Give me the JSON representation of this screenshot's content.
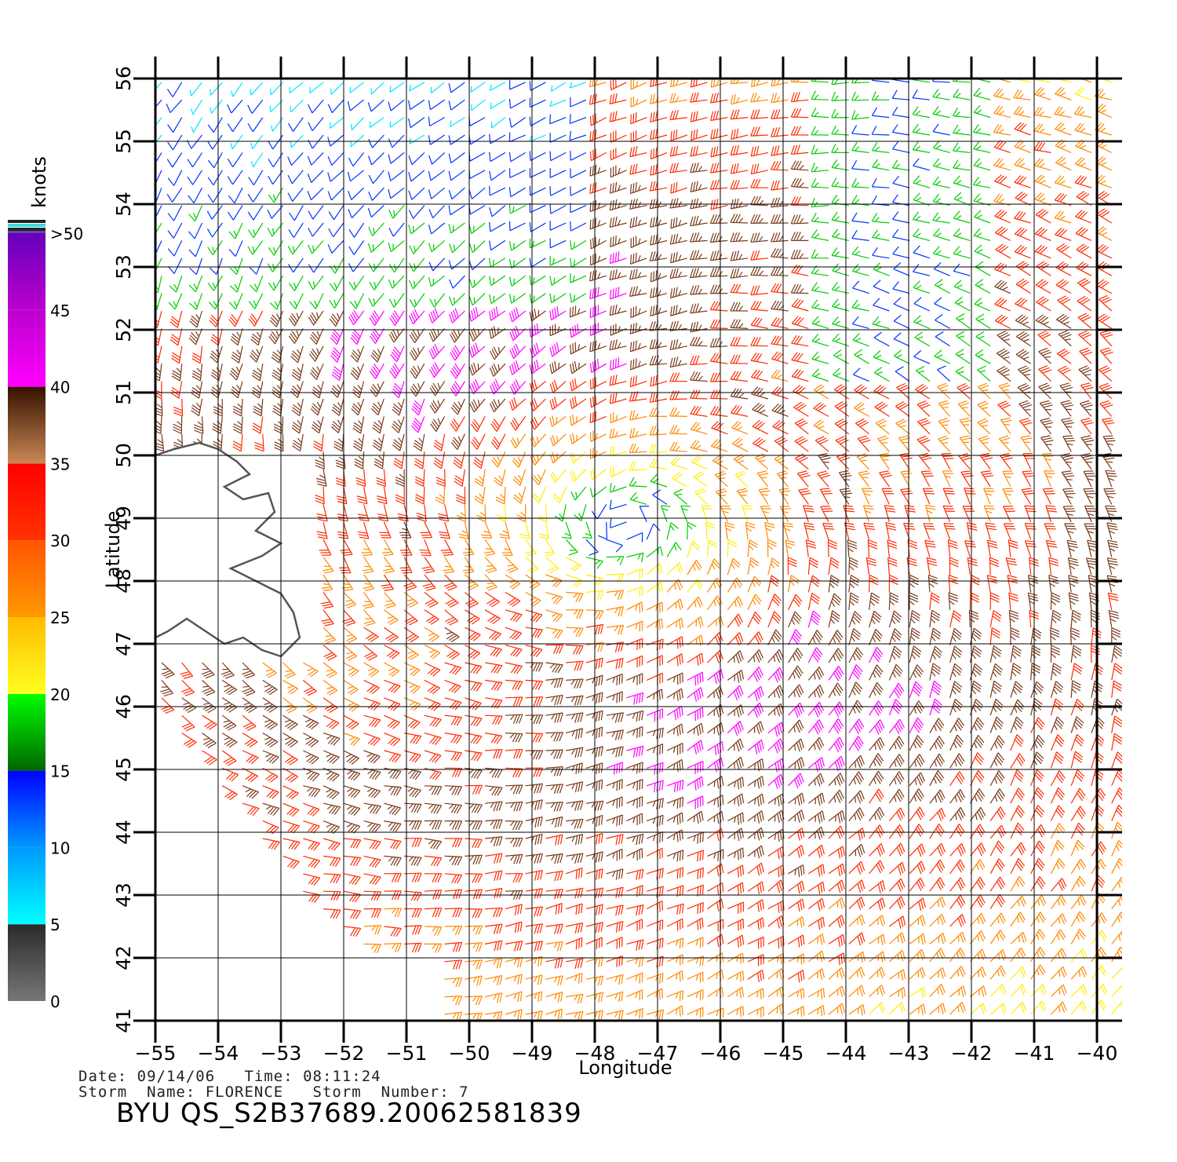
{
  "legend": {
    "title": "knots",
    "levels": [
      {
        "label": "0",
        "value": 0
      },
      {
        "label": "5",
        "value": 5
      },
      {
        "label": "10",
        "value": 10
      },
      {
        "label": "15",
        "value": 15
      },
      {
        "label": "20",
        "value": 20
      },
      {
        "label": "25",
        "value": 25
      },
      {
        "label": "30",
        "value": 30
      },
      {
        "label": "35",
        "value": 35
      },
      {
        "label": "40",
        "value": 40
      },
      {
        "label": "45",
        "value": 45
      },
      {
        "label": ">50",
        "value": 50
      }
    ],
    "colors": {
      "0-5": "#7a7a7a",
      "5-10": "#00e5ff",
      "10-15": "#0033ff",
      "15-20": "#00cc00",
      "20-25": "#ffee00",
      "25-30": "#ff8800",
      "30-35": "#ff2a00",
      "35-40": "#7a3a1a",
      "40-45": "#ff00ff",
      "45-50": "#7a00cc"
    }
  },
  "map": {
    "x_axis": {
      "title": "Longitude",
      "range": [
        -55,
        -40
      ],
      "tick_labels": [
        "−55",
        "−54",
        "−53",
        "−52",
        "−51",
        "−50",
        "−49",
        "−48",
        "−47",
        "−46",
        "−45",
        "−44",
        "−43",
        "−42",
        "−41",
        "−40"
      ]
    },
    "y_axis": {
      "title": "Latitude",
      "range": [
        41,
        56
      ],
      "tick_labels": [
        "41",
        "42",
        "43",
        "44",
        "45",
        "46",
        "47",
        "48",
        "49",
        "50",
        "51",
        "52",
        "53",
        "54",
        "55",
        "56"
      ]
    },
    "grid": true,
    "storm_center": {
      "lon": -47.5,
      "lat": 48.9
    },
    "land_color": "#555555"
  },
  "info": {
    "line1": "Date: 09/14/06   Time: 08:11:24",
    "line2": "Storm  Name: FLORENCE   Storm  Number: 7",
    "product": "BYU  QS_S2B37689.20062581839"
  }
}
